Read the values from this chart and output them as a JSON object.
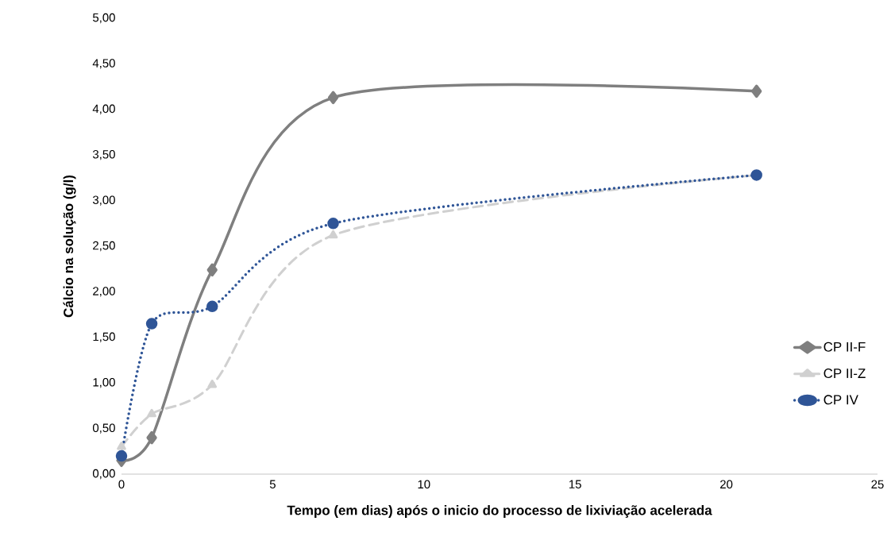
{
  "chart_data": {
    "type": "line",
    "xlabel": "Tempo (em dias) após o inicio do processo de lixiviação acelerada",
    "ylabel": "Cálcio na solução (g/l)",
    "x": [
      0,
      1,
      3,
      7,
      21
    ],
    "series": [
      {
        "name": "CP II-F",
        "color": "#7f7f7f",
        "marker": "diamond",
        "line_style": "solid",
        "values": [
          0.15,
          0.4,
          2.24,
          4.13,
          4.2
        ]
      },
      {
        "name": "CP II-Z",
        "color": "#d0d0d0",
        "marker": "triangle",
        "line_style": "dashed",
        "values": [
          0.3,
          0.66,
          0.98,
          2.62,
          3.28
        ]
      },
      {
        "name": "CP IV",
        "color": "#2f5597",
        "marker": "circle",
        "line_style": "dotted",
        "values": [
          0.2,
          1.65,
          1.84,
          2.75,
          3.28
        ]
      }
    ],
    "xlim": [
      0,
      25
    ],
    "xticks": [
      0,
      5,
      10,
      15,
      20,
      25
    ],
    "ylim": [
      0,
      5
    ],
    "yticks": [
      {
        "value": 0,
        "label": "0,00"
      },
      {
        "value": 0.5,
        "label": "0,50"
      },
      {
        "value": 1,
        "label": "1,00"
      },
      {
        "value": 1.5,
        "label": "1,50"
      },
      {
        "value": 2,
        "label": "2,00"
      },
      {
        "value": 2.5,
        "label": "2,50"
      },
      {
        "value": 3,
        "label": "3,00"
      },
      {
        "value": 3.5,
        "label": "3,50"
      },
      {
        "value": 4,
        "label": "4,00"
      },
      {
        "value": 4.5,
        "label": "4,50"
      },
      {
        "value": 5,
        "label": "5,00"
      }
    ],
    "grid": false,
    "legend": "right"
  }
}
